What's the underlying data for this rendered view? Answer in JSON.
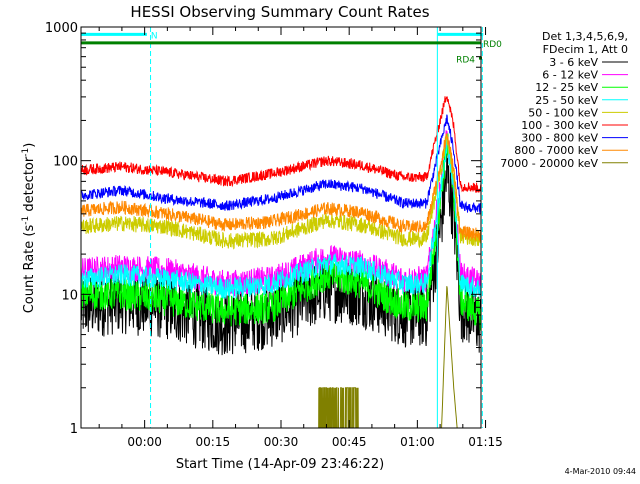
{
  "chart_data": {
    "type": "line",
    "title": "HESSI Observing Summary Count Rates",
    "xlabel": "Start Time (14-Apr-09 23:46:22)",
    "ylabel_main": "Count Rate (s",
    "ylabel_sup1": "-1",
    "ylabel_mid": " detector",
    "ylabel_sup2": "-1",
    "ylabel_end": ")",
    "y_scale": "log",
    "ylim": [
      1,
      1000
    ],
    "xlim_minutes": [
      -14,
      74
    ],
    "x_ticks": [
      {
        "minute": 0,
        "label": "00:00"
      },
      {
        "minute": 15,
        "label": "00:15"
      },
      {
        "minute": 30,
        "label": "00:30"
      },
      {
        "minute": 45,
        "label": "00:45"
      },
      {
        "minute": 60,
        "label": "01:00"
      },
      {
        "minute": 75,
        "label": "01:15"
      }
    ],
    "y_ticks": [
      {
        "value": 1,
        "label": "1"
      },
      {
        "value": 10,
        "label": "10"
      },
      {
        "value": 100,
        "label": "100"
      },
      {
        "value": 1000,
        "label": "1000"
      }
    ],
    "legend_placement": "right",
    "legend_header": [
      "Det 1,3,4,5,6,9,",
      "FDecim 1, Att 0"
    ],
    "series": [
      {
        "name": "3 - 6 keV",
        "color": "#000000",
        "baseline": [
          [
            -14,
            8
          ],
          [
            -5,
            9
          ],
          [
            5,
            8
          ],
          [
            18,
            6
          ],
          [
            28,
            7
          ],
          [
            40,
            11
          ],
          [
            48,
            10
          ],
          [
            57,
            7
          ],
          [
            62,
            7
          ],
          [
            65,
            30
          ],
          [
            66.5,
            80
          ],
          [
            68,
            40
          ],
          [
            69.5,
            8
          ],
          [
            74,
            6
          ]
        ],
        "noise": 0.25
      },
      {
        "name": "6 - 12 keV",
        "color": "#ff00ff",
        "baseline": [
          [
            -14,
            15
          ],
          [
            -5,
            16
          ],
          [
            5,
            15
          ],
          [
            18,
            12
          ],
          [
            28,
            13
          ],
          [
            40,
            19
          ],
          [
            48,
            17
          ],
          [
            57,
            13
          ],
          [
            62,
            13
          ],
          [
            65,
            60
          ],
          [
            66.5,
            150
          ],
          [
            68,
            70
          ],
          [
            69.5,
            14
          ],
          [
            74,
            12
          ]
        ],
        "noise": 0.1
      },
      {
        "name": "12 - 25 keV",
        "color": "#00ff00",
        "baseline": [
          [
            -14,
            10
          ],
          [
            -5,
            10
          ],
          [
            5,
            9
          ],
          [
            18,
            7.5
          ],
          [
            28,
            8
          ],
          [
            40,
            14
          ],
          [
            48,
            12
          ],
          [
            57,
            8
          ],
          [
            62,
            8
          ],
          [
            65,
            50
          ],
          [
            66.5,
            140
          ],
          [
            68,
            60
          ],
          [
            69.5,
            9
          ],
          [
            74,
            7
          ]
        ],
        "noise": 0.12
      },
      {
        "name": "25 - 50 keV",
        "color": "#00ffff",
        "baseline": [
          [
            -14,
            13
          ],
          [
            -5,
            14
          ],
          [
            5,
            13
          ],
          [
            18,
            11
          ],
          [
            28,
            12
          ],
          [
            40,
            17
          ],
          [
            48,
            16
          ],
          [
            57,
            12
          ],
          [
            62,
            12
          ],
          [
            65,
            55
          ],
          [
            66.5,
            145
          ],
          [
            68,
            65
          ],
          [
            69.5,
            12
          ],
          [
            74,
            11
          ]
        ],
        "noise": 0.08
      },
      {
        "name": "50 - 100 keV",
        "color": "#cccc00",
        "baseline": [
          [
            -14,
            32
          ],
          [
            -5,
            34
          ],
          [
            5,
            32
          ],
          [
            18,
            25
          ],
          [
            28,
            26
          ],
          [
            40,
            36
          ],
          [
            48,
            33
          ],
          [
            57,
            26
          ],
          [
            62,
            26
          ],
          [
            65,
            80
          ],
          [
            66.5,
            155
          ],
          [
            68,
            75
          ],
          [
            69.5,
            27
          ],
          [
            74,
            26
          ]
        ],
        "noise": 0.06
      },
      {
        "name": "100 - 300 keV",
        "color": "#ff0000",
        "baseline": [
          [
            -14,
            85
          ],
          [
            -5,
            90
          ],
          [
            5,
            82
          ],
          [
            18,
            70
          ],
          [
            28,
            80
          ],
          [
            40,
            100
          ],
          [
            48,
            92
          ],
          [
            57,
            75
          ],
          [
            62,
            75
          ],
          [
            65,
            200
          ],
          [
            66.5,
            320
          ],
          [
            68,
            180
          ],
          [
            69.5,
            65
          ],
          [
            74,
            62
          ]
        ],
        "noise": 0.04
      },
      {
        "name": "300 - 800 keV",
        "color": "#0000ff",
        "baseline": [
          [
            -14,
            55
          ],
          [
            -5,
            60
          ],
          [
            5,
            52
          ],
          [
            18,
            46
          ],
          [
            28,
            52
          ],
          [
            40,
            67
          ],
          [
            48,
            62
          ],
          [
            57,
            48
          ],
          [
            62,
            48
          ],
          [
            65,
            130
          ],
          [
            66.5,
            210
          ],
          [
            68,
            120
          ],
          [
            69.5,
            45
          ],
          [
            74,
            44
          ]
        ],
        "noise": 0.04
      },
      {
        "name": "800 - 7000 keV",
        "color": "#ff8800",
        "baseline": [
          [
            -14,
            42
          ],
          [
            -5,
            45
          ],
          [
            5,
            40
          ],
          [
            18,
            33
          ],
          [
            28,
            35
          ],
          [
            40,
            44
          ],
          [
            48,
            41
          ],
          [
            57,
            32
          ],
          [
            62,
            32
          ],
          [
            65,
            90
          ],
          [
            66.5,
            160
          ],
          [
            68,
            85
          ],
          [
            69.5,
            29
          ],
          [
            74,
            28
          ]
        ],
        "noise": 0.05
      },
      {
        "name": "7000 - 20000 keV",
        "color": "#808000",
        "baseline": [
          [
            -14,
            0.5
          ],
          [
            65,
            0.5
          ],
          [
            66.5,
            12
          ],
          [
            68,
            2
          ],
          [
            69.5,
            0.5
          ],
          [
            74,
            0.5
          ]
        ],
        "noise": 0.0,
        "bursts": {
          "start": 38,
          "end": 47,
          "value": 2
        }
      }
    ],
    "vertical_markers": [
      {
        "minute": 1.3,
        "color": "#00ffff",
        "style": "dashed"
      },
      {
        "minute": 64.4,
        "color": "#00ffff",
        "style": "solid"
      },
      {
        "minute": 74.3,
        "color": "#00ffff",
        "style": "dashed"
      }
    ],
    "flags": [
      {
        "label": "N",
        "color": "#00ffff",
        "y": 880,
        "start": -14,
        "end": 0.5,
        "gap_end": 64.5,
        "resume": 74.5
      },
      {
        "label": "RD0",
        "color": "#008000",
        "y": 760,
        "start": -14,
        "end": 74
      },
      {
        "label": "RD4",
        "color": "#008000",
        "y": 580,
        "start": 74,
        "end": 74
      }
    ],
    "footer_date": "4-Mar-2010 09:44"
  }
}
